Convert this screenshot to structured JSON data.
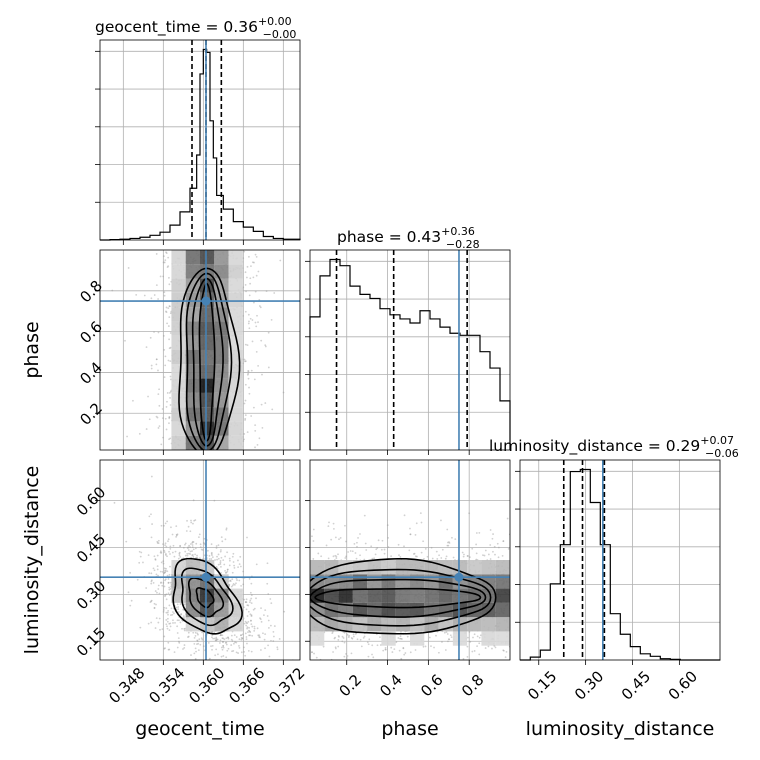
{
  "chart_data": {
    "type": "corner",
    "parameters": [
      "geocent_time",
      "phase",
      "luminosity_distance"
    ],
    "injection": {
      "geocent_time": 0.3604,
      "phase": 0.75,
      "luminosity_distance": 0.355
    },
    "colors": {
      "truth": "#4682b4",
      "hist": "#000000",
      "quantile": "#000000",
      "grid": "#b0b0b0"
    },
    "titles": [
      {
        "param": "geocent_time",
        "text": "geocent_time = 0.36",
        "sup": "+0.00",
        "sub": "−0.00"
      },
      {
        "param": "phase",
        "text": "phase = 0.43",
        "sup": "+0.36",
        "sub": "−0.28"
      },
      {
        "param": "luminosity_distance",
        "text": "luminosity_distance = 0.29",
        "sup": "+0.07",
        "sub": "−0.06"
      }
    ],
    "axes": {
      "geocent_time": {
        "label": "geocent_time",
        "range": [
          0.3445,
          0.3745
        ],
        "ticks": [
          0.348,
          0.354,
          0.36,
          0.366,
          0.372
        ],
        "tick_labels": [
          "0.348",
          "0.354",
          "0.360",
          "0.366",
          "0.372"
        ]
      },
      "phase": {
        "label": "phase",
        "range": [
          0.02,
          1.0
        ],
        "ticks": [
          0.2,
          0.4,
          0.6,
          0.8
        ],
        "tick_labels": [
          "0.2",
          "0.4",
          "0.6",
          "0.8"
        ]
      },
      "luminosity_distance": {
        "label": "luminosity_distance",
        "range": [
          0.09,
          0.73
        ],
        "ticks": [
          0.15,
          0.3,
          0.45,
          0.6
        ],
        "tick_labels": [
          "0.15",
          "0.30",
          "0.45",
          "0.60"
        ]
      }
    },
    "histograms": {
      "geocent_time": {
        "bin_edges": [
          0.3445,
          0.346,
          0.3475,
          0.349,
          0.3505,
          0.352,
          0.3535,
          0.355,
          0.3565,
          0.358,
          0.359,
          0.3595,
          0.36,
          0.3605,
          0.361,
          0.3615,
          0.362,
          0.363,
          0.3645,
          0.366,
          0.3675,
          0.369,
          0.3705,
          0.372,
          0.3745
        ],
        "counts": [
          0,
          2,
          4,
          8,
          14,
          24,
          40,
          76,
          144,
          265,
          435,
          850,
          975,
          960,
          610,
          420,
          228,
          158,
          94,
          66,
          44,
          18,
          8,
          4
        ],
        "quantiles": [
          0.3583,
          0.3604,
          0.3627
        ]
      },
      "phase": {
        "bin_edges": [
          0.02,
          0.069,
          0.118,
          0.167,
          0.216,
          0.265,
          0.314,
          0.363,
          0.412,
          0.461,
          0.51,
          0.559,
          0.608,
          0.657,
          0.706,
          0.755,
          0.804,
          0.853,
          0.902,
          0.951,
          1.0
        ],
        "counts": [
          650,
          850,
          930,
          900,
          800,
          760,
          740,
          690,
          660,
          640,
          620,
          680,
          640,
          600,
          570,
          560,
          560,
          480,
          400,
          240
        ],
        "quantiles": [
          0.15,
          0.43,
          0.79
        ]
      },
      "luminosity_distance": {
        "bin_edges": [
          0.09,
          0.123,
          0.155,
          0.187,
          0.219,
          0.251,
          0.283,
          0.315,
          0.347,
          0.379,
          0.411,
          0.443,
          0.475,
          0.507,
          0.539,
          0.571,
          0.603,
          0.635,
          0.667,
          0.699,
          0.731
        ],
        "counts": [
          0,
          14,
          48,
          370,
          560,
          915,
          925,
          765,
          560,
          225,
          125,
          65,
          30,
          18,
          6,
          3,
          0,
          0,
          0,
          0
        ],
        "quantiles": [
          0.23,
          0.29,
          0.36
        ]
      }
    },
    "density_2d": [
      {
        "x": "geocent_time",
        "y": "phase",
        "center": [
          0.3605,
          0.45
        ],
        "spread": [
          0.0022,
          0.28
        ],
        "correlation": 0.0
      },
      {
        "x": "geocent_time",
        "y": "luminosity_distance",
        "center": [
          0.3602,
          0.29
        ],
        "spread": [
          0.0025,
          0.06
        ],
        "correlation": -0.35
      },
      {
        "x": "phase",
        "y": "luminosity_distance",
        "center": [
          0.45,
          0.29
        ],
        "spread": [
          0.3,
          0.06
        ],
        "correlation": 0.0
      }
    ],
    "grid": true
  }
}
